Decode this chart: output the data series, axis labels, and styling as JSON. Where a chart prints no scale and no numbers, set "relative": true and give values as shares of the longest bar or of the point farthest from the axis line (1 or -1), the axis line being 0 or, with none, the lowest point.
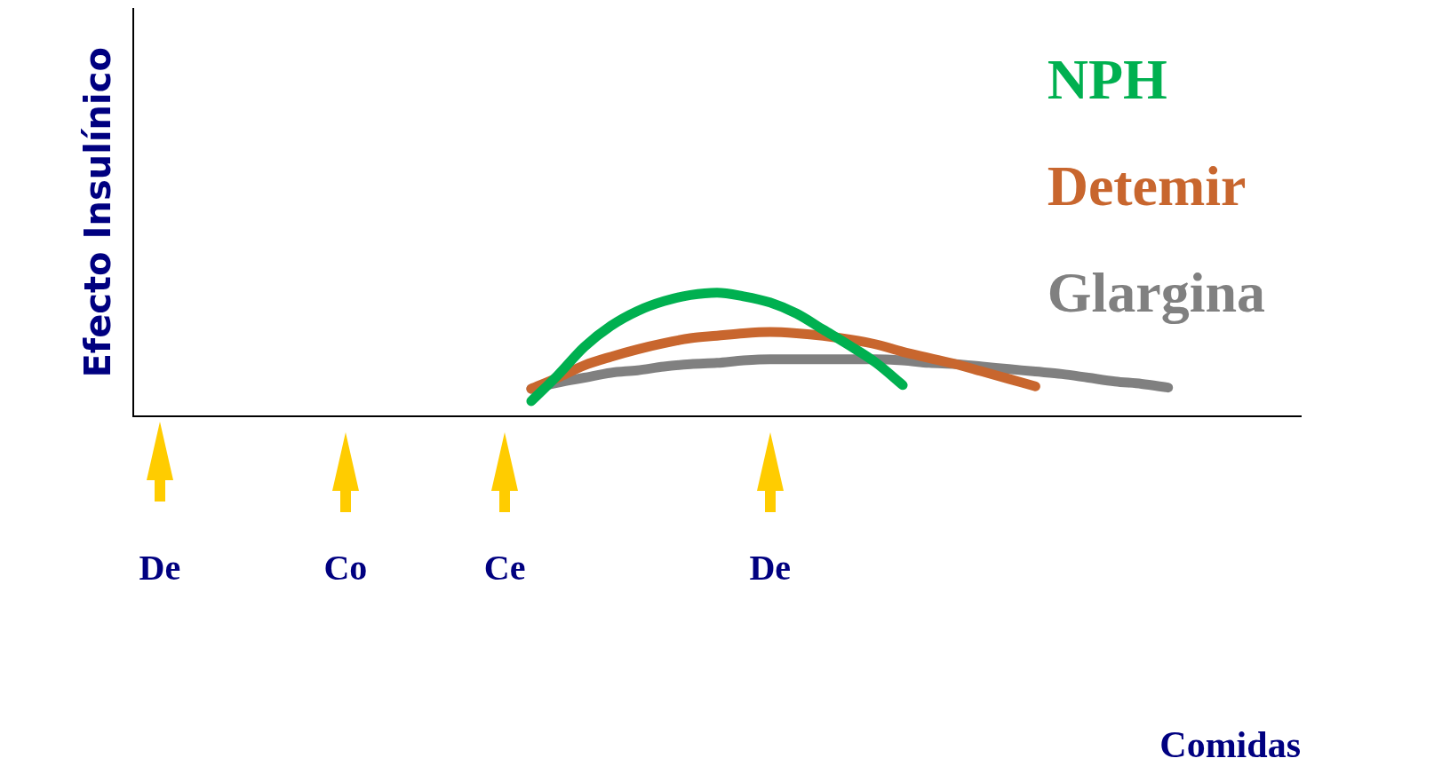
{
  "chart_data": {
    "type": "line",
    "relative": true,
    "ylabel": "Efecto Insulínico",
    "xlabel": "Comidas",
    "legend": "top right",
    "grid": false,
    "marker": "none",
    "line_style": "solid",
    "categories": [
      null,
      "De",
      null,
      null,
      null,
      null,
      null,
      null,
      "Co",
      null,
      null,
      null,
      null,
      null,
      "Ce",
      null,
      null,
      null,
      null,
      null,
      null,
      null,
      null,
      null,
      "De",
      null,
      null,
      null,
      null,
      null,
      null,
      null,
      null,
      null,
      null,
      null,
      null,
      null,
      null,
      null,
      null,
      null,
      null,
      null,
      null
    ],
    "series": [
      {
        "name": "NPH",
        "color": "#00b050",
        "values": [
          null,
          null,
          null,
          null,
          null,
          null,
          null,
          null,
          null,
          null,
          null,
          null,
          null,
          null,
          null,
          0.12,
          0.33,
          0.56,
          0.73,
          0.85,
          0.93,
          0.98,
          1,
          0.97,
          0.92,
          0.83,
          0.7,
          0.57,
          0.43,
          0.25,
          null,
          null,
          null,
          null,
          null,
          null,
          null,
          null,
          null,
          null,
          null,
          null,
          null,
          null,
          null
        ]
      },
      {
        "name": "Detemir",
        "color": "#c8662e",
        "values": [
          null,
          null,
          null,
          null,
          null,
          null,
          null,
          null,
          null,
          null,
          null,
          null,
          null,
          null,
          null,
          0.22,
          0.31,
          0.41,
          0.48,
          0.54,
          0.59,
          0.63,
          0.65,
          0.67,
          0.68,
          0.67,
          0.65,
          0.62,
          0.58,
          0.52,
          0.47,
          0.42,
          0.36,
          0.3,
          0.24,
          null,
          null,
          null,
          null,
          null,
          null,
          null,
          null,
          null,
          null
        ]
      },
      {
        "name": "Glargina",
        "color": "#808080",
        "values": [
          null,
          null,
          null,
          null,
          null,
          null,
          null,
          null,
          null,
          null,
          null,
          null,
          null,
          null,
          null,
          0.22,
          0.27,
          0.31,
          0.35,
          0.37,
          0.4,
          0.42,
          0.43,
          0.45,
          0.46,
          0.46,
          0.46,
          0.46,
          0.46,
          0.45,
          0.43,
          0.42,
          0.4,
          0.38,
          0.36,
          0.34,
          0.31,
          0.28,
          0.26,
          0.23,
          null,
          null,
          null,
          null,
          null
        ]
      }
    ]
  }
}
